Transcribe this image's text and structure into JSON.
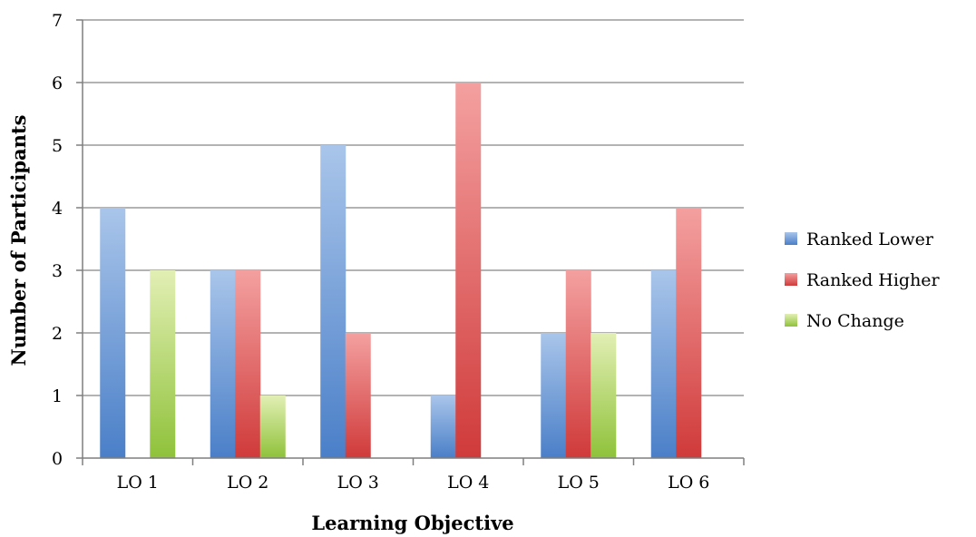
{
  "chart_data": {
    "type": "bar",
    "title": "",
    "xlabel": "Learning Objective",
    "ylabel": "Number of Participants",
    "categories": [
      "LO 1",
      "LO 2",
      "LO 3",
      "LO 4",
      "LO 5",
      "LO 6"
    ],
    "ylim": [
      0,
      7
    ],
    "yticks": [
      "0",
      "1",
      "2",
      "3",
      "4",
      "5",
      "6",
      "7"
    ],
    "grid": true,
    "legend_position": "right",
    "series": [
      {
        "name": "Ranked Lower",
        "values": [
          4,
          3,
          5,
          1,
          2,
          3
        ],
        "color": "#4a7fc8",
        "color_light": "#a9c5ea"
      },
      {
        "name": "Ranked Higher",
        "values": [
          0,
          3,
          2,
          6,
          3,
          4
        ],
        "color": "#d03a3a",
        "color_light": "#f4a0a0"
      },
      {
        "name": "No Change",
        "values": [
          3,
          1,
          0,
          0,
          2,
          0
        ],
        "color": "#8fc23a",
        "color_light": "#e2efb4"
      }
    ]
  }
}
